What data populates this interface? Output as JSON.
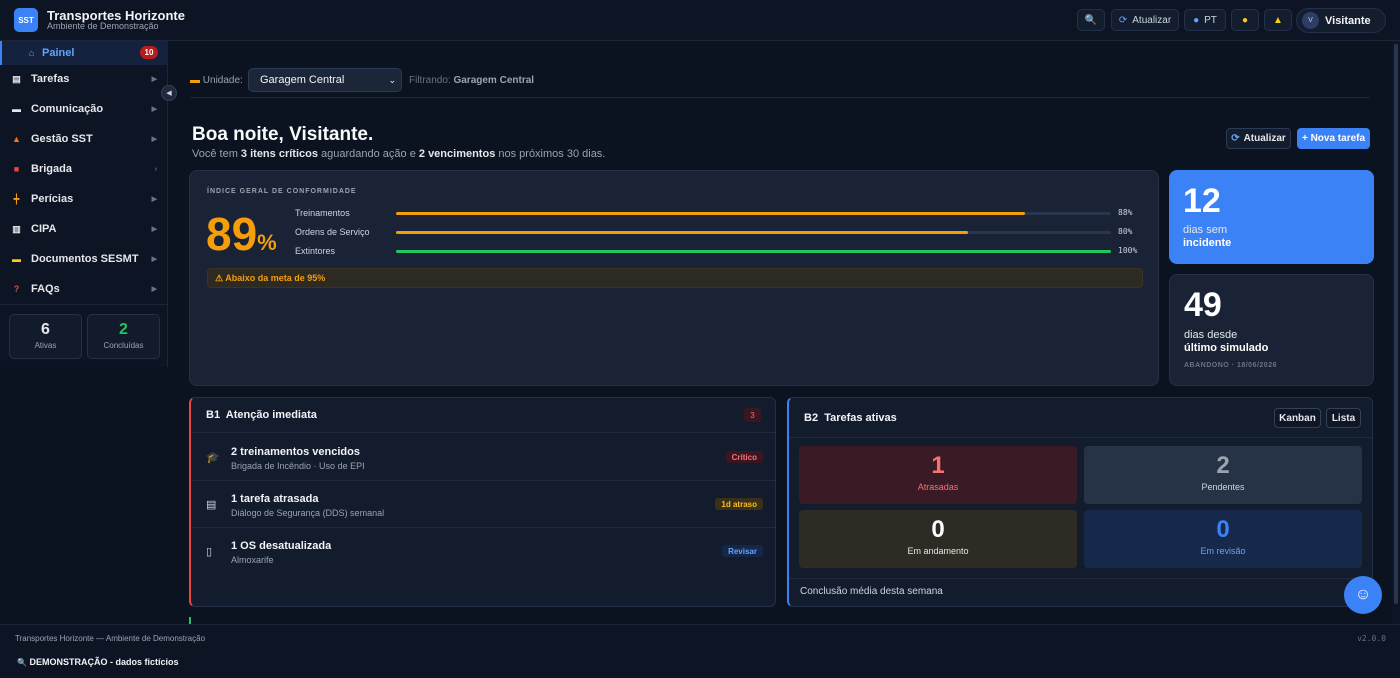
{
  "app": {
    "logo": "SST",
    "title": "Transportes Horizonte",
    "subtitle": "Ambiente de Demonstração"
  },
  "topbar": {
    "refresh_label": "Atualizar",
    "lang_label": "PT",
    "user_initials": "V",
    "user_name": "Visitante"
  },
  "sidebar": {
    "items": [
      {
        "label": "Painel",
        "badge": "10"
      },
      {
        "label": "Tarefas"
      },
      {
        "label": "Comunicação"
      },
      {
        "label": "Gestão SST"
      },
      {
        "label": "Brigada"
      },
      {
        "label": "Perícias"
      },
      {
        "label": "CIPA"
      },
      {
        "label": "Documentos SESMT"
      },
      {
        "label": "FAQs"
      }
    ],
    "stats": [
      {
        "value": "6",
        "label": "Ativas",
        "color": "#e5e7eb"
      },
      {
        "value": "2",
        "label": "Concluídas",
        "color": "#22c55e"
      }
    ]
  },
  "filter": {
    "label": "Unidade:",
    "selected": "Garagem Central",
    "info_prefix": "Filtrando:",
    "info_value": "Garagem Central"
  },
  "greeting": {
    "title": "Boa noite, Visitante.",
    "sub_1": "Você tem ",
    "sub_b1": "3 itens críticos",
    "sub_2": " aguardando ação e ",
    "sub_b2": "2 vencimentos",
    "sub_3": " nos próximos 30 dias.",
    "refresh_button": "Atualizar",
    "new_task_button": "+ Nova tarefa"
  },
  "compliance": {
    "title": "ÍNDICE GERAL DE CONFORMIDADE",
    "value": "89",
    "unit": "%",
    "bars": [
      {
        "label": "Treinamentos",
        "value": 88,
        "display": "88%",
        "color": "#f59e0b"
      },
      {
        "label": "Ordens de Serviço",
        "value": 80,
        "display": "80%",
        "color": "#f59e0b"
      },
      {
        "label": "Extintores",
        "value": 100,
        "display": "100%",
        "color": "#22c55e"
      }
    ],
    "warning": "⚠ Abaixo da meta de 95%"
  },
  "kpis": {
    "incident_days": "12",
    "incident_l1": "dias sem",
    "incident_l2": "incidente",
    "sim_days": "49",
    "sim_l1": "dias desde",
    "sim_l2": "último simulado",
    "sim_foot": "ABANDONO · 18/06/2026"
  },
  "attention": {
    "code": "B1",
    "title": "Atenção imediata",
    "count": "3",
    "rows": [
      {
        "icon": "graduation-cap-icon",
        "title": "2 treinamentos vencidos",
        "sub": "Brigada de Incêndio · Uso de EPI",
        "tag": "Crítico"
      },
      {
        "icon": "clipboard-icon",
        "title": "1 tarefa atrasada",
        "sub": "Diálogo de Segurança (DDS) semanal",
        "tag": "1d atraso"
      },
      {
        "icon": "document-icon",
        "title": "1 OS desatualizada",
        "sub": "Almoxarife",
        "tag": "Revisar"
      }
    ]
  },
  "tasks": {
    "code": "B2",
    "title": "Tarefas ativas",
    "kanban": "Kanban",
    "list": "Lista",
    "tiles": [
      {
        "value": "1",
        "label": "Atrasadas"
      },
      {
        "value": "2",
        "label": "Pendentes"
      },
      {
        "value": "0",
        "label": "Em andamento"
      },
      {
        "value": "0",
        "label": "Em revisão"
      }
    ],
    "week_label": "Conclusão média desta semana"
  },
  "footer": {
    "text": "Transportes Horizonte — Ambiente de Demonstração",
    "version": "v2.0.0",
    "demo": "DEMONSTRAÇÃO - dados fictícios"
  }
}
